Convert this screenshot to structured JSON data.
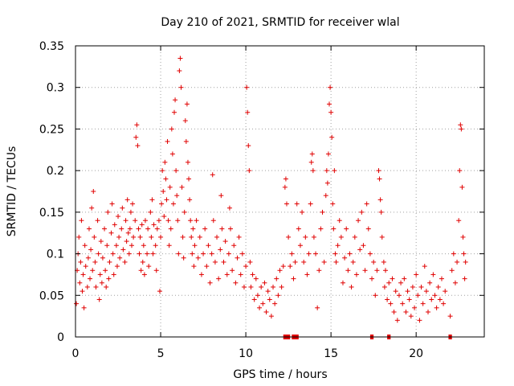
{
  "chart_data": {
    "type": "scatter",
    "title": "Day 210 of 2021, SRMTID for receiver wlal",
    "xlabel": "GPS time / hours",
    "ylabel": "SRMTID / TECUs",
    "xlim": [
      0,
      24
    ],
    "ylim": [
      0,
      0.35
    ],
    "xticks": [
      0,
      5,
      10,
      15,
      20
    ],
    "yticks": [
      0,
      0.05,
      0.1,
      0.15,
      0.2,
      0.25,
      0.3,
      0.35
    ],
    "xtick_labels": [
      "0",
      "5",
      "10",
      "15",
      "20"
    ],
    "ytick_labels": [
      "0",
      "0.05",
      "0.1",
      "0.15",
      "0.2",
      "0.25",
      "0.3",
      "0.35"
    ],
    "grid": true,
    "marker": "+",
    "color": "#e00000",
    "series": [
      {
        "name": "SRMTID",
        "points": [
          [
            0.05,
            0.04
          ],
          [
            0.1,
            0.08
          ],
          [
            0.15,
            0.1
          ],
          [
            0.2,
            0.12
          ],
          [
            0.25,
            0.065
          ],
          [
            0.3,
            0.09
          ],
          [
            0.35,
            0.14
          ],
          [
            0.4,
            0.055
          ],
          [
            0.45,
            0.075
          ],
          [
            0.5,
            0.035
          ],
          [
            0.55,
            0.11
          ],
          [
            0.6,
            0.085
          ],
          [
            0.7,
            0.06
          ],
          [
            0.75,
            0.095
          ],
          [
            0.8,
            0.13
          ],
          [
            0.85,
            0.07
          ],
          [
            0.9,
            0.105
          ],
          [
            0.95,
            0.155
          ],
          [
            1.0,
            0.08
          ],
          [
            1.05,
            0.175
          ],
          [
            1.1,
            0.12
          ],
          [
            1.15,
            0.09
          ],
          [
            1.2,
            0.06
          ],
          [
            1.3,
            0.14
          ],
          [
            1.35,
            0.1
          ],
          [
            1.4,
            0.045
          ],
          [
            1.45,
            0.075
          ],
          [
            1.5,
            0.115
          ],
          [
            1.55,
            0.065
          ],
          [
            1.6,
            0.095
          ],
          [
            1.7,
            0.13
          ],
          [
            1.75,
            0.08
          ],
          [
            1.8,
            0.06
          ],
          [
            1.85,
            0.11
          ],
          [
            1.9,
            0.15
          ],
          [
            1.95,
            0.07
          ],
          [
            2.0,
            0.09
          ],
          [
            2.1,
            0.125
          ],
          [
            2.15,
            0.16
          ],
          [
            2.2,
            0.1
          ],
          [
            2.25,
            0.075
          ],
          [
            2.3,
            0.135
          ],
          [
            2.4,
            0.11
          ],
          [
            2.45,
            0.085
          ],
          [
            2.5,
            0.145
          ],
          [
            2.55,
            0.12
          ],
          [
            2.6,
            0.095
          ],
          [
            2.7,
            0.13
          ],
          [
            2.75,
            0.155
          ],
          [
            2.8,
            0.105
          ],
          [
            2.9,
            0.09
          ],
          [
            2.95,
            0.14
          ],
          [
            3.0,
            0.115
          ],
          [
            3.05,
            0.165
          ],
          [
            3.1,
            0.125
          ],
          [
            3.15,
            0.1
          ],
          [
            3.2,
            0.13
          ],
          [
            3.25,
            0.15
          ],
          [
            3.3,
            0.11
          ],
          [
            3.35,
            0.16
          ],
          [
            3.4,
            0.12
          ],
          [
            3.5,
            0.14
          ],
          [
            3.55,
            0.24
          ],
          [
            3.6,
            0.255
          ],
          [
            3.65,
            0.23
          ],
          [
            3.7,
            0.13
          ],
          [
            3.75,
            0.1
          ],
          [
            3.8,
            0.12
          ],
          [
            3.85,
            0.08
          ],
          [
            3.9,
            0.135
          ],
          [
            3.95,
            0.09
          ],
          [
            4.0,
            0.11
          ],
          [
            4.05,
            0.075
          ],
          [
            4.1,
            0.14
          ],
          [
            4.2,
            0.1
          ],
          [
            4.25,
            0.13
          ],
          [
            4.3,
            0.085
          ],
          [
            4.4,
            0.15
          ],
          [
            4.45,
            0.12
          ],
          [
            4.5,
            0.165
          ],
          [
            4.55,
            0.1
          ],
          [
            4.6,
            0.135
          ],
          [
            4.7,
            0.11
          ],
          [
            4.75,
            0.08
          ],
          [
            4.8,
            0.13
          ],
          [
            4.9,
            0.14
          ],
          [
            4.95,
            0.055
          ],
          [
            5.0,
            0.12
          ],
          [
            5.05,
            0.16
          ],
          [
            5.1,
            0.2
          ],
          [
            5.15,
            0.175
          ],
          [
            5.2,
            0.145
          ],
          [
            5.25,
            0.21
          ],
          [
            5.3,
            0.19
          ],
          [
            5.35,
            0.165
          ],
          [
            5.4,
            0.235
          ],
          [
            5.45,
            0.14
          ],
          [
            5.5,
            0.11
          ],
          [
            5.55,
            0.18
          ],
          [
            5.6,
            0.13
          ],
          [
            5.65,
            0.25
          ],
          [
            5.7,
            0.22
          ],
          [
            5.75,
            0.16
          ],
          [
            5.8,
            0.27
          ],
          [
            5.85,
            0.285
          ],
          [
            5.9,
            0.2
          ],
          [
            5.95,
            0.17
          ],
          [
            6.0,
            0.14
          ],
          [
            6.05,
            0.1
          ],
          [
            6.1,
            0.32
          ],
          [
            6.15,
            0.335
          ],
          [
            6.2,
            0.3
          ],
          [
            6.25,
            0.18
          ],
          [
            6.3,
            0.12
          ],
          [
            6.35,
            0.095
          ],
          [
            6.4,
            0.15
          ],
          [
            6.45,
            0.26
          ],
          [
            6.5,
            0.235
          ],
          [
            6.55,
            0.28
          ],
          [
            6.6,
            0.21
          ],
          [
            6.65,
            0.19
          ],
          [
            6.7,
            0.165
          ],
          [
            6.75,
            0.14
          ],
          [
            6.8,
            0.12
          ],
          [
            6.85,
            0.1
          ],
          [
            6.9,
            0.13
          ],
          [
            6.95,
            0.085
          ],
          [
            7.0,
            0.11
          ],
          [
            7.1,
            0.14
          ],
          [
            7.2,
            0.095
          ],
          [
            7.3,
            0.12
          ],
          [
            7.4,
            0.075
          ],
          [
            7.5,
            0.1
          ],
          [
            7.6,
            0.13
          ],
          [
            7.7,
            0.085
          ],
          [
            7.8,
            0.11
          ],
          [
            7.9,
            0.065
          ],
          [
            8.0,
            0.1
          ],
          [
            8.05,
            0.195
          ],
          [
            8.1,
            0.14
          ],
          [
            8.2,
            0.09
          ],
          [
            8.3,
            0.12
          ],
          [
            8.4,
            0.07
          ],
          [
            8.5,
            0.105
          ],
          [
            8.55,
            0.17
          ],
          [
            8.6,
            0.13
          ],
          [
            8.7,
            0.09
          ],
          [
            8.8,
            0.115
          ],
          [
            8.9,
            0.075
          ],
          [
            9.0,
            0.1
          ],
          [
            9.05,
            0.155
          ],
          [
            9.1,
            0.13
          ],
          [
            9.2,
            0.08
          ],
          [
            9.3,
            0.11
          ],
          [
            9.4,
            0.065
          ],
          [
            9.5,
            0.095
          ],
          [
            9.6,
            0.12
          ],
          [
            9.7,
            0.075
          ],
          [
            9.8,
            0.1
          ],
          [
            9.9,
            0.06
          ],
          [
            10.0,
            0.085
          ],
          [
            10.05,
            0.3
          ],
          [
            10.1,
            0.27
          ],
          [
            10.15,
            0.23
          ],
          [
            10.2,
            0.2
          ],
          [
            10.25,
            0.09
          ],
          [
            10.3,
            0.06
          ],
          [
            10.4,
            0.075
          ],
          [
            10.5,
            0.045
          ],
          [
            10.6,
            0.07
          ],
          [
            10.7,
            0.05
          ],
          [
            10.8,
            0.035
          ],
          [
            10.9,
            0.06
          ],
          [
            11.0,
            0.04
          ],
          [
            11.1,
            0.065
          ],
          [
            11.2,
            0.03
          ],
          [
            11.3,
            0.055
          ],
          [
            11.4,
            0.045
          ],
          [
            11.5,
            0.025
          ],
          [
            11.6,
            0.06
          ],
          [
            11.7,
            0.04
          ],
          [
            11.8,
            0.07
          ],
          [
            11.9,
            0.05
          ],
          [
            12.0,
            0.08
          ],
          [
            12.1,
            0.06
          ],
          [
            12.2,
            0.085
          ],
          [
            12.3,
            0.18
          ],
          [
            12.35,
            0.19
          ],
          [
            12.4,
            0.16
          ],
          [
            12.5,
            0.12
          ],
          [
            12.6,
            0.085
          ],
          [
            12.7,
            0.1
          ],
          [
            12.8,
            0.07
          ],
          [
            12.9,
            0.09
          ],
          [
            13.0,
            0.16
          ],
          [
            13.1,
            0.13
          ],
          [
            13.2,
            0.11
          ],
          [
            13.3,
            0.15
          ],
          [
            13.4,
            0.09
          ],
          [
            13.5,
            0.12
          ],
          [
            13.6,
            0.075
          ],
          [
            13.7,
            0.1
          ],
          [
            13.8,
            0.16
          ],
          [
            13.85,
            0.21
          ],
          [
            13.9,
            0.22
          ],
          [
            13.95,
            0.2
          ],
          [
            14.0,
            0.12
          ],
          [
            14.1,
            0.1
          ],
          [
            14.2,
            0.035
          ],
          [
            14.3,
            0.08
          ],
          [
            14.4,
            0.13
          ],
          [
            14.5,
            0.15
          ],
          [
            14.6,
            0.09
          ],
          [
            14.7,
            0.17
          ],
          [
            14.75,
            0.2
          ],
          [
            14.8,
            0.185
          ],
          [
            14.85,
            0.22
          ],
          [
            14.9,
            0.28
          ],
          [
            14.95,
            0.3
          ],
          [
            15.0,
            0.27
          ],
          [
            15.05,
            0.24
          ],
          [
            15.1,
            0.16
          ],
          [
            15.15,
            0.13
          ],
          [
            15.2,
            0.2
          ],
          [
            15.25,
            0.1
          ],
          [
            15.3,
            0.09
          ],
          [
            15.4,
            0.11
          ],
          [
            15.5,
            0.14
          ],
          [
            15.6,
            0.12
          ],
          [
            15.7,
            0.065
          ],
          [
            15.8,
            0.095
          ],
          [
            15.9,
            0.13
          ],
          [
            16.0,
            0.08
          ],
          [
            16.1,
            0.1
          ],
          [
            16.2,
            0.06
          ],
          [
            16.3,
            0.09
          ],
          [
            16.4,
            0.12
          ],
          [
            16.5,
            0.075
          ],
          [
            16.6,
            0.14
          ],
          [
            16.7,
            0.105
          ],
          [
            16.8,
            0.15
          ],
          [
            16.9,
            0.11
          ],
          [
            17.0,
            0.08
          ],
          [
            17.1,
            0.16
          ],
          [
            17.2,
            0.13
          ],
          [
            17.3,
            0.1
          ],
          [
            17.4,
            0.07
          ],
          [
            17.5,
            0.09
          ],
          [
            17.6,
            0.05
          ],
          [
            17.7,
            0.08
          ],
          [
            17.8,
            0.2
          ],
          [
            17.85,
            0.19
          ],
          [
            17.9,
            0.165
          ],
          [
            17.95,
            0.15
          ],
          [
            18.0,
            0.12
          ],
          [
            18.1,
            0.09
          ],
          [
            18.15,
            0.06
          ],
          [
            18.2,
            0.08
          ],
          [
            18.3,
            0.045
          ],
          [
            18.4,
            0.065
          ],
          [
            18.5,
            0.04
          ],
          [
            18.6,
            0.07
          ],
          [
            18.7,
            0.03
          ],
          [
            18.8,
            0.055
          ],
          [
            18.9,
            0.02
          ],
          [
            19.0,
            0.05
          ],
          [
            19.1,
            0.065
          ],
          [
            19.2,
            0.04
          ],
          [
            19.3,
            0.07
          ],
          [
            19.4,
            0.03
          ],
          [
            19.5,
            0.055
          ],
          [
            19.6,
            0.045
          ],
          [
            19.7,
            0.025
          ],
          [
            19.8,
            0.06
          ],
          [
            19.9,
            0.035
          ],
          [
            20.0,
            0.075
          ],
          [
            20.1,
            0.05
          ],
          [
            20.2,
            0.02
          ],
          [
            20.3,
            0.06
          ],
          [
            20.4,
            0.04
          ],
          [
            20.5,
            0.085
          ],
          [
            20.6,
            0.055
          ],
          [
            20.7,
            0.03
          ],
          [
            20.8,
            0.065
          ],
          [
            20.9,
            0.045
          ],
          [
            21.0,
            0.075
          ],
          [
            21.1,
            0.05
          ],
          [
            21.2,
            0.035
          ],
          [
            21.3,
            0.06
          ],
          [
            21.4,
            0.045
          ],
          [
            21.5,
            0.07
          ],
          [
            21.6,
            0.04
          ],
          [
            21.7,
            0.055
          ],
          [
            22.0,
            0.025
          ],
          [
            22.1,
            0.08
          ],
          [
            22.2,
            0.1
          ],
          [
            22.3,
            0.065
          ],
          [
            22.4,
            0.09
          ],
          [
            22.5,
            0.14
          ],
          [
            22.55,
            0.2
          ],
          [
            22.6,
            0.255
          ],
          [
            22.65,
            0.25
          ],
          [
            22.7,
            0.18
          ],
          [
            22.75,
            0.12
          ],
          [
            22.8,
            0.1
          ],
          [
            22.85,
            0.07
          ],
          [
            22.9,
            0.09
          ]
        ]
      }
    ],
    "gap_markers": [
      [
        12.2,
        12.6
      ],
      [
        12.7,
        13.1
      ],
      [
        17.3,
        17.5
      ],
      [
        18.3,
        18.5
      ],
      [
        21.9,
        22.1
      ]
    ]
  }
}
